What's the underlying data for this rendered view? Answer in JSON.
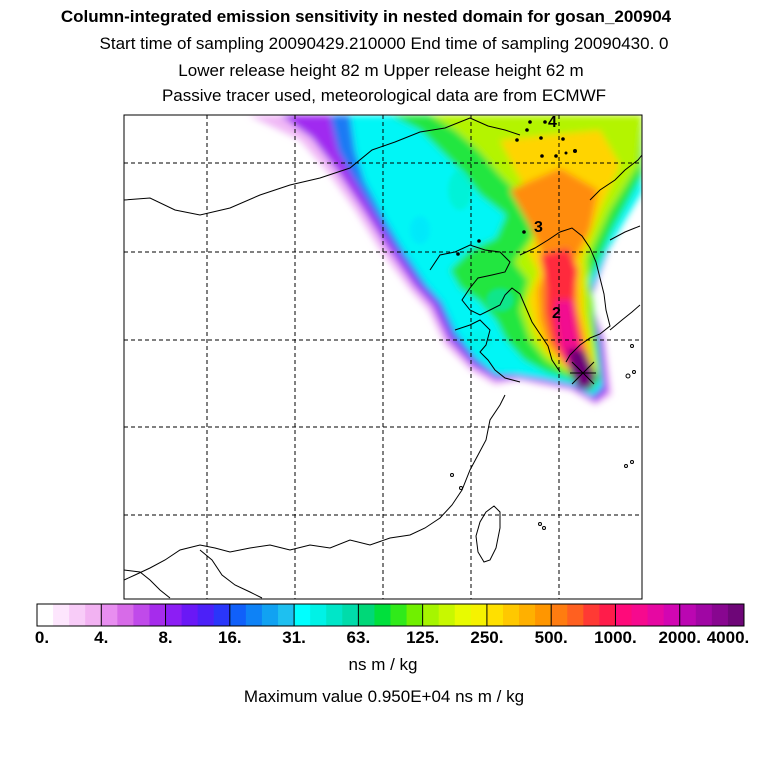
{
  "header": {
    "title": "Column-integrated emission sensitivity in nested domain for gosan_200904",
    "sampling_line": "Start time of sampling 20090429.210000      End time of sampling 20090430.     0",
    "release_line": "Lower release height   82 m          Upper release height   62 m",
    "tracer_line": "Passive tracer used, meteorological data are from ECMWF"
  },
  "map": {
    "day_markers": [
      "4",
      "3",
      "2"
    ],
    "station_marker_color": "#000000",
    "grid_style": "dashed"
  },
  "colorbar": {
    "labels": [
      "0.",
      "4.",
      "8.",
      "16.",
      "31.",
      "63.",
      "125.",
      "250.",
      "500.",
      "1000.",
      "2000.",
      "4000."
    ],
    "colors": [
      "#ffffff",
      "#fde6fd",
      "#f8ccf8",
      "#f2b2f2",
      "#e88ef0",
      "#d76be8",
      "#c04aea",
      "#a62cec",
      "#8c1ef4",
      "#6a18f6",
      "#4c20f8",
      "#2a36fa",
      "#1060fa",
      "#0e82f6",
      "#11a2f2",
      "#1ec0f0",
      "#00ffff",
      "#00f2e6",
      "#00e6c8",
      "#00dcaa",
      "#00d878",
      "#00e03c",
      "#30ea1a",
      "#70f000",
      "#a6f500",
      "#c8f800",
      "#e8fb00",
      "#f6f200",
      "#ffe000",
      "#ffc800",
      "#ffb000",
      "#ff9600",
      "#ff7c10",
      "#ff6020",
      "#ff3a34",
      "#ff1c4a",
      "#ff0a7a",
      "#f60a8e",
      "#e608a2",
      "#d206b2",
      "#bb06b2",
      "#a006a4",
      "#880690",
      "#6e0678"
    ],
    "units": "ns m / kg",
    "maximum_text": "Maximum value  0.950E+04 ns m / kg"
  }
}
